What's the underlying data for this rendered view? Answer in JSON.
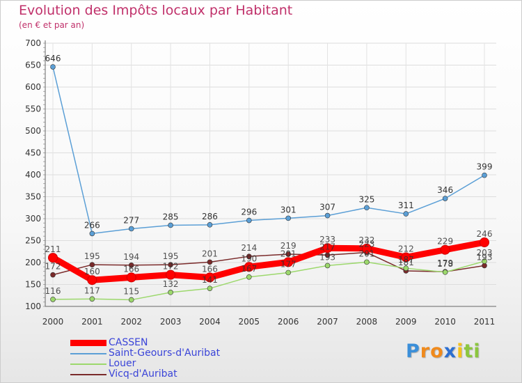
{
  "chart_data": {
    "type": "line",
    "title": "Evolution des Impôts locaux par Habitant",
    "subtitle": "(en € et par an)",
    "categories": [
      "2000",
      "2001",
      "2002",
      "2003",
      "2004",
      "2005",
      "2006",
      "2007",
      "2008",
      "2009",
      "2010",
      "2011"
    ],
    "ylim": [
      100,
      700
    ],
    "yticks": [
      100,
      150,
      200,
      250,
      300,
      350,
      400,
      450,
      500,
      550,
      600,
      650,
      700
    ],
    "grid": true,
    "series": [
      {
        "name": "Saint-Geours-d'Auribat",
        "color": "#5b9fd6",
        "values": [
          646,
          266,
          277,
          285,
          286,
          296,
          301,
          307,
          325,
          311,
          346,
          399
        ]
      },
      {
        "name": "Vicq-d'Auribat",
        "color": "#7a2a2a",
        "values": [
          172,
          195,
          194,
          195,
          201,
          214,
          219,
          217,
          223,
          181,
          179,
          193
        ]
      },
      {
        "name": "Louer",
        "color": "#9cd86c",
        "values": [
          116,
          117,
          115,
          132,
          141,
          167,
          177,
          193,
          201,
          187,
          178,
          203
        ]
      },
      {
        "name": "CASSEN",
        "color": "#ff0000",
        "values": [
          211,
          160,
          166,
          172,
          166,
          190,
          201,
          233,
          232,
          212,
          229,
          246
        ]
      }
    ],
    "legend": [
      {
        "name": "CASSEN",
        "color": "#ff0000",
        "thick": true
      },
      {
        "name": "Saint-Geours-d'Auribat",
        "color": "#5b9fd6",
        "thick": false
      },
      {
        "name": "Louer",
        "color": "#9cd86c",
        "thick": false
      },
      {
        "name": "Vicq-d'Auribat",
        "color": "#7a2a2a",
        "thick": false
      }
    ]
  },
  "logo": {
    "letters": [
      "P",
      "r",
      "o",
      "x",
      "i",
      "t",
      "i"
    ],
    "colors": [
      "#3b8fd9",
      "#f08a1c",
      "#f08a1c",
      "#2c6fd1",
      "#f5c21a",
      "#8cc63f",
      "#8cc63f"
    ]
  }
}
